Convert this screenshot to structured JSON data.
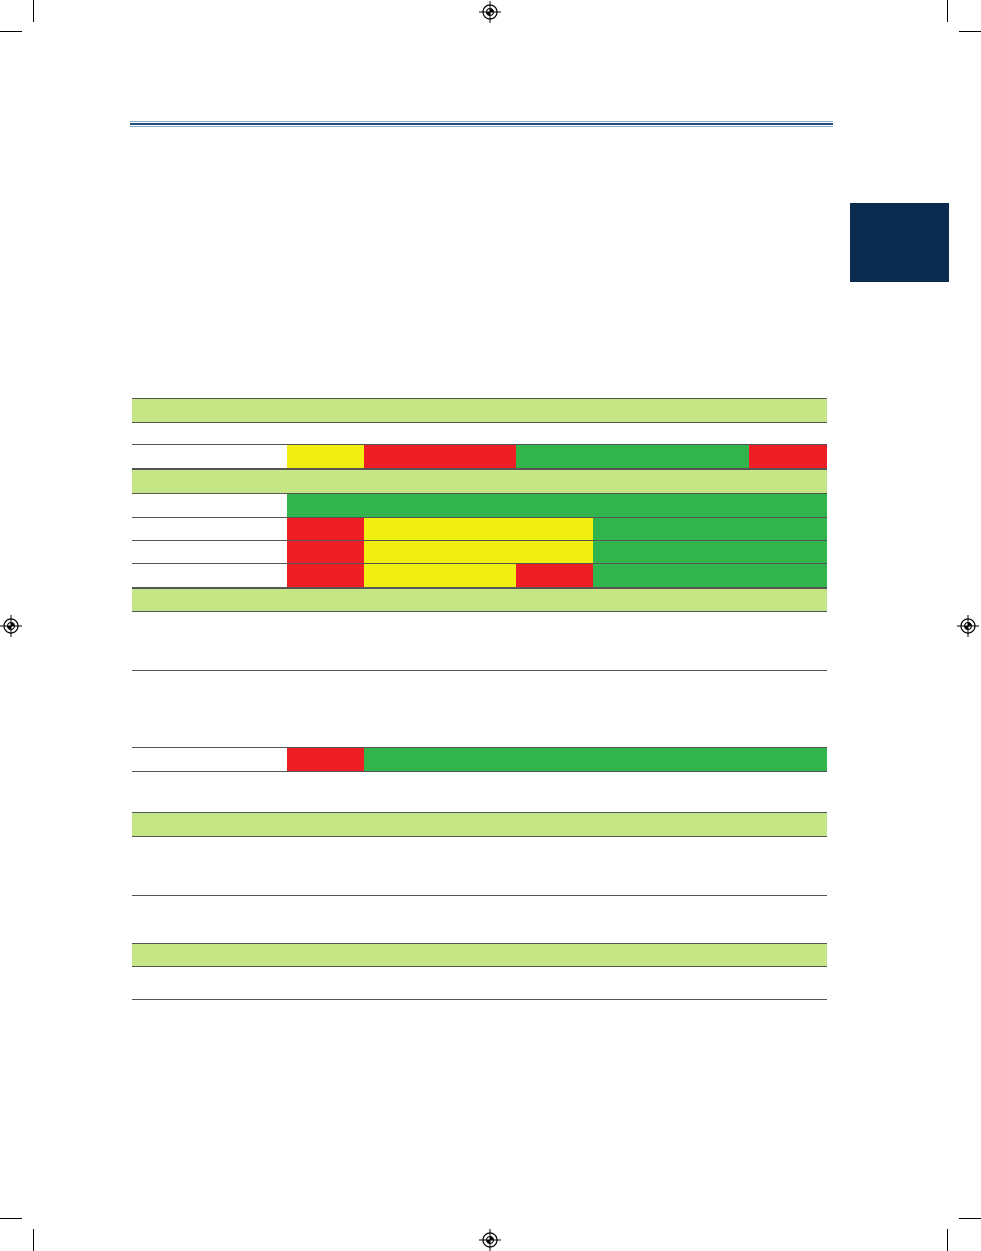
{
  "page": {
    "colors": {
      "section_band": "#c6e685",
      "status_red": "#ed1f24",
      "status_yellow": "#f1ee12",
      "status_green": "#31b44b",
      "chapter_tab": "#0b2c4e",
      "header_rule": "#1f4e79"
    }
  },
  "marks": {
    "registration": "registration-target-icon"
  },
  "table": {
    "rows": [
      {
        "kind": "section",
        "label": ""
      },
      {
        "kind": "blank",
        "label": ""
      },
      {
        "kind": "status",
        "label": "",
        "segments": [
          "yellow",
          "red",
          "green",
          "red"
        ]
      },
      {
        "kind": "section",
        "label": ""
      },
      {
        "kind": "status",
        "label": "",
        "segments": [
          "green"
        ]
      },
      {
        "kind": "status",
        "label": "",
        "segments": [
          "red",
          "yellow",
          "green"
        ]
      },
      {
        "kind": "status",
        "label": "",
        "segments": [
          "red",
          "yellow",
          "green"
        ]
      },
      {
        "kind": "status",
        "label": "",
        "segments": [
          "red",
          "yellow",
          "red",
          "green"
        ]
      },
      {
        "kind": "section",
        "label": ""
      },
      {
        "kind": "blank",
        "label": ""
      },
      {
        "kind": "blank",
        "label": ""
      },
      {
        "kind": "status",
        "label": "",
        "segments": [
          "red",
          "green"
        ]
      },
      {
        "kind": "blank",
        "label": ""
      },
      {
        "kind": "section",
        "label": ""
      },
      {
        "kind": "blank",
        "label": ""
      },
      {
        "kind": "blank",
        "label": ""
      },
      {
        "kind": "section",
        "label": ""
      },
      {
        "kind": "blank",
        "label": ""
      }
    ]
  }
}
